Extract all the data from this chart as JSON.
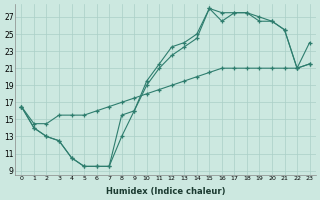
{
  "xlabel": "Humidex (Indice chaleur)",
  "background_color": "#cce8e0",
  "grid_color": "#aacfc7",
  "line_color": "#2e7d6e",
  "xlim": [
    -0.5,
    23.5
  ],
  "ylim": [
    8.5,
    28.5
  ],
  "xticks": [
    0,
    1,
    2,
    3,
    4,
    5,
    6,
    7,
    8,
    9,
    10,
    11,
    12,
    13,
    14,
    15,
    16,
    17,
    18,
    19,
    20,
    21,
    22,
    23
  ],
  "yticks": [
    9,
    11,
    13,
    15,
    17,
    19,
    21,
    23,
    25,
    27
  ],
  "line1_x": [
    0,
    1,
    2,
    3,
    4,
    5,
    6,
    7,
    8,
    9,
    10,
    11,
    12,
    13,
    14,
    15,
    16,
    17,
    18,
    19,
    20,
    21,
    22,
    23
  ],
  "line1_y": [
    16.5,
    14.0,
    13.0,
    12.5,
    10.5,
    9.5,
    9.5,
    9.5,
    13.0,
    16.0,
    19.0,
    21.0,
    22.5,
    23.5,
    24.5,
    28.0,
    27.5,
    27.5,
    27.5,
    27.0,
    26.5,
    25.5,
    21.0,
    21.5
  ],
  "line2_x": [
    0,
    1,
    2,
    3,
    4,
    5,
    6,
    7,
    8,
    9,
    10,
    11,
    12,
    13,
    14,
    15,
    16,
    17,
    18,
    19,
    20,
    21,
    22,
    23
  ],
  "line2_y": [
    16.5,
    14.0,
    13.0,
    12.5,
    10.5,
    9.5,
    9.5,
    9.5,
    15.5,
    16.0,
    19.5,
    21.5,
    23.5,
    24.0,
    25.0,
    28.0,
    26.5,
    27.5,
    27.5,
    26.5,
    26.5,
    25.5,
    21.0,
    24.0
  ],
  "line3_x": [
    0,
    1,
    2,
    3,
    4,
    5,
    6,
    7,
    8,
    9,
    10,
    11,
    12,
    13,
    14,
    15,
    16,
    17,
    18,
    19,
    20,
    21,
    22,
    23
  ],
  "line3_y": [
    16.5,
    14.5,
    14.5,
    15.5,
    15.5,
    15.5,
    16.0,
    16.5,
    17.0,
    17.5,
    18.0,
    18.5,
    19.0,
    19.5,
    20.0,
    20.5,
    21.0,
    21.0,
    21.0,
    21.0,
    21.0,
    21.0,
    21.0,
    21.5
  ]
}
